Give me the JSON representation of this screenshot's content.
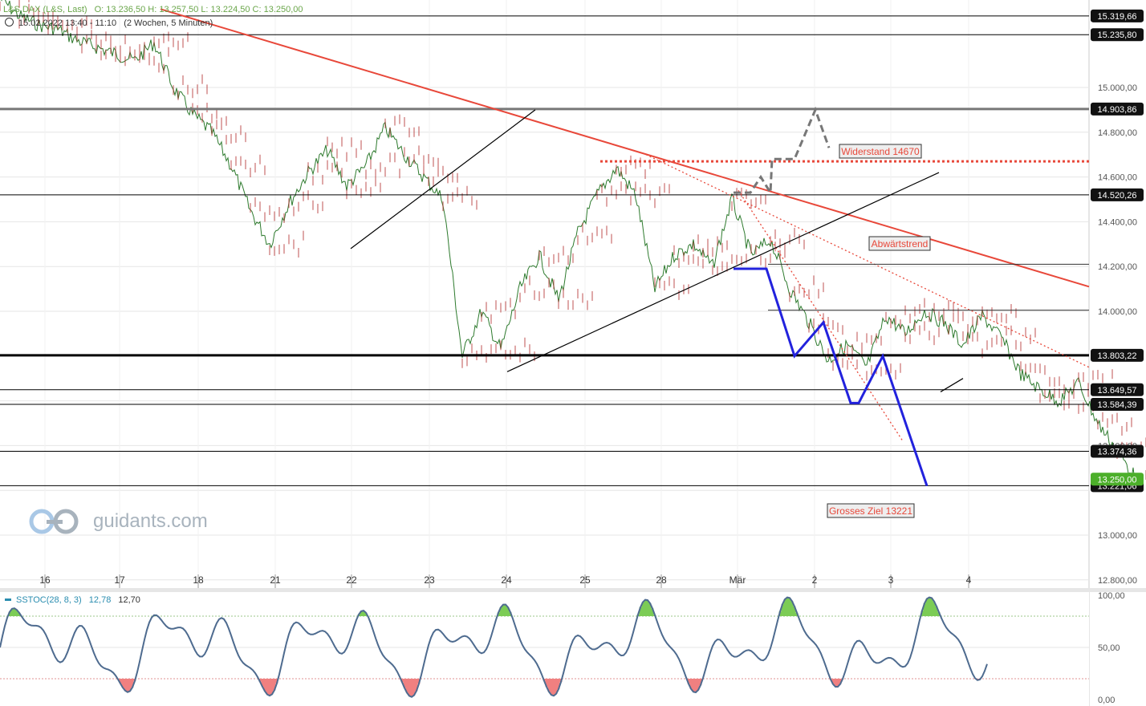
{
  "header": {
    "instrument": "L&S DAX (L&S, Last)",
    "ohlc": "O: 13.236,50  H: 13.257,50  L: 13.224,50  C: 13.250,00",
    "range": "15.02.2022 13:40 - 11:10",
    "period": "(2 Wochen, 5 Minuten)"
  },
  "watermark": "guidants.com",
  "colors": {
    "background": "#ffffff",
    "grid": "#e6e6e6",
    "candle_up": "#2d7a2d",
    "candle_down": "#b33030",
    "trend_red": "#e8483a",
    "blue_path": "#2222dd",
    "gray_dashed": "#777777",
    "label_bg": "#111111",
    "stoch_line": "#4e6b8f",
    "stoch_over": "#7ccc55",
    "stoch_under": "#f08080"
  },
  "chart_data": [
    {
      "type": "line",
      "title": "",
      "y_axis": {
        "min": 12800,
        "max": 15300,
        "side": "right",
        "ticks": [
          "15.000,00",
          "14.800,00",
          "14.600,00",
          "14.400,00",
          "14.200,00",
          "14.000,00",
          "13.400,00",
          "13.000,00",
          "12.800,00"
        ]
      },
      "x_axis": {
        "tick_labels": [
          "16",
          "17",
          "18",
          "21",
          "22",
          "23",
          "24",
          "25",
          "28",
          "Mär",
          "2",
          "3",
          "4"
        ]
      },
      "level_lines": [
        {
          "value": 15319.66,
          "label": "15.319,66"
        },
        {
          "value": 15235.8,
          "label": "15.235,80"
        },
        {
          "value": 14903.86,
          "label": "14.903,86"
        },
        {
          "value": 14520.26,
          "label": "14.520,26"
        },
        {
          "value": 13803.22,
          "label": "13.803,22"
        },
        {
          "value": 13649.57,
          "label": "13.649,57"
        },
        {
          "value": 13584.39,
          "label": "13.584,39"
        },
        {
          "value": 13374.36,
          "label": "13.374,36"
        },
        {
          "value": 13221.06,
          "label": "13.221,06"
        }
      ],
      "last_price": {
        "value": 13250.0,
        "label": "13.250,00"
      },
      "annotations": [
        {
          "text": "Widerstand 14670",
          "value": 14670
        },
        {
          "text": "Abwärtstrend"
        },
        {
          "text": "Grosses Ziel 13221",
          "value": 13221
        }
      ],
      "price_path": [
        [
          0,
          15400
        ],
        [
          0.5,
          15320
        ],
        [
          1,
          15280
        ],
        [
          1.5,
          15260
        ],
        [
          2,
          15210
        ],
        [
          2.5,
          15180
        ],
        [
          3,
          15150
        ],
        [
          3.5,
          15120
        ],
        [
          4,
          15200
        ],
        [
          4.5,
          15000
        ],
        [
          5,
          14880
        ],
        [
          5.5,
          14800
        ],
        [
          6,
          14650
        ],
        [
          6.5,
          14450
        ],
        [
          7,
          14300
        ],
        [
          7.5,
          14480
        ],
        [
          8,
          14620
        ],
        [
          8.5,
          14720
        ],
        [
          9,
          14560
        ],
        [
          9.5,
          14650
        ],
        [
          10,
          14820
        ],
        [
          10.5,
          14700
        ],
        [
          11,
          14600
        ],
        [
          11.5,
          14500
        ],
        [
          12,
          13800
        ],
        [
          12.5,
          14000
        ],
        [
          13,
          13830
        ],
        [
          13.5,
          14100
        ],
        [
          14,
          14250
        ],
        [
          14.5,
          14050
        ],
        [
          15,
          14350
        ],
        [
          15.5,
          14520
        ],
        [
          16,
          14640
        ],
        [
          16.5,
          14520
        ],
        [
          17,
          14100
        ],
        [
          17.5,
          14250
        ],
        [
          18,
          14300
        ],
        [
          18.5,
          14200
        ],
        [
          19,
          14500
        ],
        [
          19.5,
          14250
        ],
        [
          20,
          14320
        ],
        [
          20.5,
          14100
        ],
        [
          21,
          13950
        ],
        [
          21.5,
          13780
        ],
        [
          22,
          13850
        ],
        [
          22.5,
          13750
        ],
        [
          23,
          13980
        ],
        [
          23.5,
          13900
        ],
        [
          24,
          14000
        ],
        [
          24.5,
          13950
        ],
        [
          25,
          13850
        ],
        [
          25.5,
          13980
        ],
        [
          26,
          13880
        ],
        [
          26.5,
          13720
        ],
        [
          27,
          13650
        ],
        [
          27.5,
          13600
        ],
        [
          28,
          13680
        ],
        [
          28.5,
          13500
        ],
        [
          29,
          13380
        ],
        [
          29.5,
          13250
        ]
      ]
    },
    {
      "type": "line",
      "title": "SSTOC(28, 8, 3)",
      "values_shown": [
        "12,78",
        "12,70"
      ],
      "y_axis": {
        "min": 0,
        "max": 100,
        "ticks": [
          "100,00",
          "50,00",
          "0,00"
        ]
      },
      "levels": [
        80,
        20
      ]
    }
  ]
}
